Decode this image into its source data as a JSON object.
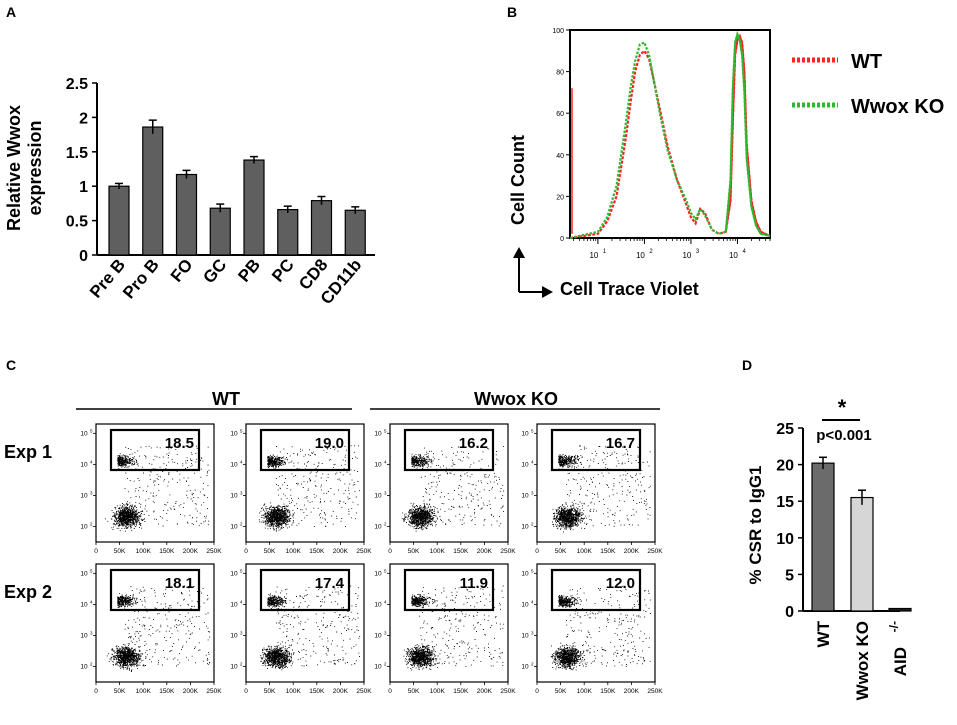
{
  "chart_data": [
    {
      "panel": "A",
      "type": "bar",
      "ylabel_lines": [
        "Relative Wwox",
        "expression"
      ],
      "categories": [
        "Pre B",
        "Pro B",
        "FO",
        "GC",
        "PB",
        "PC",
        "CD8",
        "CD11b"
      ],
      "values": [
        1.0,
        1.86,
        1.17,
        0.68,
        1.38,
        0.66,
        0.79,
        0.65
      ],
      "errors": [
        0.04,
        0.1,
        0.06,
        0.06,
        0.05,
        0.05,
        0.06,
        0.05
      ],
      "ylim": [
        0,
        2.5
      ],
      "yticks": [
        "0",
        "0.5",
        "1",
        "1.5",
        "2",
        "2.5"
      ],
      "bar_color": "#5f5f5f"
    },
    {
      "panel": "B",
      "type": "line",
      "xlabel": "Cell Trace Violet",
      "ylabel": "Cell Count",
      "xlim": [
        0.4,
        4.7
      ],
      "ylim": [
        0,
        100
      ],
      "yticks": [
        "0",
        "20",
        "40",
        "60",
        "80",
        "100"
      ],
      "xticks": [
        {
          "base": "10",
          "exp": "1",
          "value": 1
        },
        {
          "base": "10",
          "exp": "2",
          "value": 2
        },
        {
          "base": "10",
          "exp": "3",
          "value": 3
        },
        {
          "base": "10",
          "exp": "4",
          "value": 4
        }
      ],
      "series": [
        {
          "name": "WT",
          "color": "#ff2222",
          "x": [
            0.4,
            1.0,
            1.2,
            1.4,
            1.6,
            1.7,
            1.8,
            1.9,
            2.0,
            2.1,
            2.2,
            2.35,
            2.5,
            2.7,
            2.9,
            3.0,
            3.1,
            3.2,
            3.3,
            3.45,
            3.6,
            3.75,
            3.85,
            3.9,
            3.95,
            4.0,
            4.05,
            4.1,
            4.15,
            4.2,
            4.3,
            4.4,
            4.5,
            4.7
          ],
          "y": [
            0,
            2,
            8,
            20,
            48,
            65,
            80,
            88,
            90,
            86,
            76,
            60,
            44,
            28,
            16,
            10,
            7,
            14,
            12,
            4,
            2,
            3,
            18,
            55,
            88,
            95,
            97,
            94,
            80,
            45,
            18,
            8,
            3,
            1
          ]
        },
        {
          "name": "Wwox KO",
          "color": "#2fb82f",
          "x": [
            0.4,
            1.0,
            1.2,
            1.4,
            1.6,
            1.7,
            1.8,
            1.9,
            2.0,
            2.1,
            2.2,
            2.35,
            2.5,
            2.7,
            2.9,
            3.0,
            3.1,
            3.2,
            3.3,
            3.45,
            3.6,
            3.75,
            3.85,
            3.9,
            3.95,
            4.0,
            4.05,
            4.1,
            4.15,
            4.2,
            4.3,
            4.4,
            4.5,
            4.7
          ],
          "y": [
            0,
            3,
            10,
            25,
            55,
            72,
            85,
            93,
            94,
            88,
            76,
            58,
            42,
            28,
            18,
            12,
            9,
            14,
            11,
            4,
            2,
            3,
            28,
            72,
            94,
            98,
            95,
            88,
            70,
            38,
            15,
            6,
            2,
            1
          ]
        }
      ],
      "legend": [
        "WT",
        "Wwox KO"
      ]
    },
    {
      "panel": "C",
      "type": "scatter",
      "group_labels": [
        "WT",
        "Wwox KO"
      ],
      "row_labels": [
        "Exp 1",
        "Exp 2"
      ],
      "gate_values": [
        [
          "18.5",
          "19.0",
          "16.2",
          "16.7"
        ],
        [
          "18.1",
          "17.4",
          "11.9",
          "12.0"
        ]
      ],
      "xticks": [
        "0",
        "50K",
        "100K",
        "150K",
        "200K",
        "250K"
      ],
      "yticks": [
        {
          "base": "10",
          "exp": "5",
          "value": 5
        },
        {
          "base": "10",
          "exp": "4",
          "value": 4
        },
        {
          "base": "10",
          "exp": "3",
          "value": 3
        },
        {
          "base": "10",
          "exp": "2",
          "value": 2
        }
      ],
      "xlim": [
        0,
        250000
      ],
      "ylim": [
        1.5,
        5.3
      ]
    },
    {
      "panel": "D",
      "type": "bar",
      "ylabel": "% CSR to IgG1",
      "categories": [
        "WT",
        "Wwox KO",
        "AID"
      ],
      "category_superscript": {
        "AID": "-/-"
      },
      "values": [
        20.2,
        15.5,
        0.3
      ],
      "errors": [
        0.8,
        1.0,
        0
      ],
      "colors": [
        "#6b6b6b",
        "#d6d6d6",
        "#222222"
      ],
      "ylim": [
        0,
        25
      ],
      "yticks": [
        "0",
        "5",
        "10",
        "15",
        "20",
        "25"
      ],
      "significance": {
        "mark": "*",
        "pvalue": "p<0.001"
      }
    }
  ],
  "panels": {
    "A": "A",
    "B": "B",
    "C": "C",
    "D": "D"
  }
}
